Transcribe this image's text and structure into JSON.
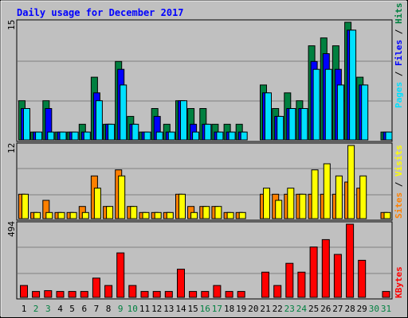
{
  "chart_data": {
    "type": "bar",
    "title": "Daily usage for December 2017",
    "categories": [
      "1",
      "2",
      "3",
      "4",
      "5",
      "6",
      "7",
      "8",
      "9",
      "10",
      "11",
      "12",
      "13",
      "14",
      "15",
      "16",
      "17",
      "18",
      "19",
      "20",
      "21",
      "22",
      "23",
      "24",
      "25",
      "26",
      "27",
      "28",
      "29",
      "30",
      "31"
    ],
    "weekend_days": [
      "2",
      "3",
      "9",
      "10",
      "16",
      "17",
      "23",
      "24",
      "30",
      "31"
    ],
    "panels": [
      {
        "name": "hits-files-pages",
        "ymax": 15,
        "ylim": [
          0,
          15
        ],
        "ymax_label": "15",
        "axis_labels": [
          "Pages",
          "/",
          "Files",
          "/",
          "Hits"
        ],
        "series": [
          {
            "name": "Hits",
            "color": "#008040",
            "values": [
              5,
              1,
              5,
              1,
              1,
              2,
              8,
              2,
              10,
              3,
              1,
              4,
              2,
              5,
              4,
              4,
              2,
              2,
              2,
              0,
              7,
              4,
              6,
              5,
              12,
              13,
              12,
              15,
              8,
              0,
              1
            ]
          },
          {
            "name": "Files",
            "color": "#0000ff",
            "values": [
              4,
              1,
              4,
              1,
              1,
              1,
              6,
              2,
              9,
              2,
              1,
              3,
              1,
              5,
              2,
              2,
              1,
              1,
              1,
              0,
              6,
              3,
              4,
              4,
              10,
              11,
              9,
              14,
              7,
              0,
              1
            ]
          },
          {
            "name": "Pages",
            "color": "#00e0ff",
            "values": [
              4,
              1,
              1,
              1,
              1,
              1,
              5,
              2,
              7,
              2,
              1,
              1,
              1,
              5,
              1,
              2,
              1,
              1,
              1,
              0,
              6,
              3,
              4,
              4,
              9,
              9,
              7,
              14,
              7,
              0,
              1
            ]
          }
        ]
      },
      {
        "name": "sites-visits",
        "ymax": 12,
        "ylim": [
          0,
          12
        ],
        "ymax_label": "12",
        "axis_labels": [
          "Sites",
          "/",
          "Visits"
        ],
        "series": [
          {
            "name": "Visits",
            "color": "#ff8000",
            "values": [
              4,
              1,
              3,
              1,
              1,
              2,
              7,
              2,
              8,
              2,
              1,
              1,
              1,
              4,
              2,
              2,
              2,
              1,
              1,
              0,
              4,
              4,
              4,
              4,
              4,
              4,
              4,
              6,
              5,
              0,
              1
            ]
          },
          {
            "name": "Sites",
            "color": "#ffff00",
            "values": [
              4,
              1,
              1,
              1,
              1,
              1,
              5,
              2,
              7,
              2,
              1,
              1,
              1,
              4,
              1,
              2,
              2,
              1,
              1,
              0,
              5,
              3,
              5,
              4,
              8,
              9,
              7,
              12,
              7,
              0,
              1
            ]
          }
        ]
      },
      {
        "name": "kbytes",
        "ymax": 494,
        "ylim": [
          0,
          494
        ],
        "ymax_label": "494",
        "axis_labels": [
          "KBytes"
        ],
        "series": [
          {
            "name": "KBytes",
            "color": "#ff0000",
            "values": [
              80,
              40,
              45,
              40,
              40,
              40,
              130,
              80,
              300,
              80,
              40,
              40,
              40,
              190,
              40,
              40,
              80,
              40,
              40,
              0,
              170,
              80,
              230,
              170,
              340,
              390,
              290,
              494,
              250,
              0,
              40
            ]
          }
        ]
      }
    ]
  }
}
